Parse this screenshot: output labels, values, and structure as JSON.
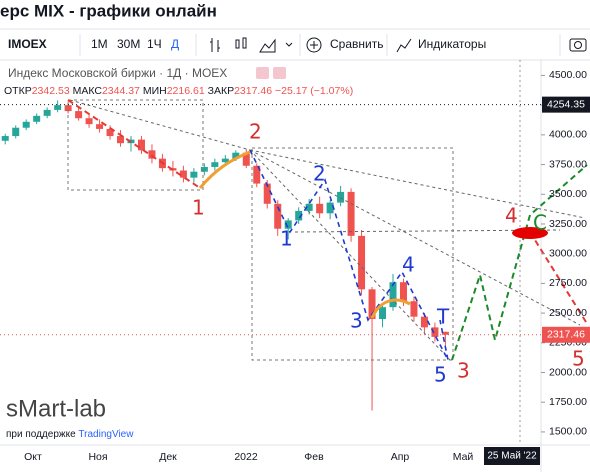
{
  "page": {
    "title": "ерс MIX - графики онлайн",
    "toolbar": {
      "symbol": "IMOEX",
      "intervals": [
        "1М",
        "30М",
        "1Ч",
        "Д"
      ],
      "compare": "Сравнить",
      "indicators": "Индикаторы"
    },
    "watermark": "sMart-lab",
    "powered_by": "при поддержке",
    "powered_by_brand": "TradingView"
  },
  "chart_data": {
    "type": "candlestick",
    "legend_title": "Индекс Московской биржи · 1Д · MOEX",
    "legend_labels": [
      "ОТКР",
      "МАКС",
      "МИН",
      "ЗАКР"
    ],
    "change": "−25.17 (−1.07%)",
    "up_color": "#26a69a",
    "down_color": "#ef5350",
    "candles": [
      [
        3950,
        4010,
        3920,
        3990
      ],
      [
        3990,
        4080,
        3970,
        4060
      ],
      [
        4060,
        4130,
        4040,
        4110
      ],
      [
        4110,
        4180,
        4090,
        4160
      ],
      [
        4160,
        4230,
        4140,
        4210
      ],
      [
        4210,
        4290,
        4190,
        4250
      ],
      [
        4250,
        4280,
        4180,
        4200
      ],
      [
        4200,
        4230,
        4120,
        4140
      ],
      [
        4140,
        4170,
        4060,
        4090
      ],
      [
        4090,
        4130,
        4020,
        4050
      ],
      [
        4050,
        4080,
        3960,
        3990
      ],
      [
        3990,
        4040,
        3900,
        3930
      ],
      [
        3930,
        3990,
        3860,
        3960
      ],
      [
        3960,
        3990,
        3840,
        3870
      ],
      [
        3870,
        3920,
        3760,
        3800
      ],
      [
        3800,
        3840,
        3690,
        3720
      ],
      [
        3720,
        3780,
        3650,
        3700
      ],
      [
        3700,
        3740,
        3600,
        3640
      ],
      [
        3640,
        3720,
        3600,
        3690
      ],
      [
        3690,
        3760,
        3660,
        3730
      ],
      [
        3730,
        3800,
        3700,
        3770
      ],
      [
        3770,
        3830,
        3740,
        3800
      ],
      [
        3800,
        3870,
        3780,
        3850
      ],
      [
        3850,
        3880,
        3720,
        3740
      ],
      [
        3740,
        3760,
        3560,
        3590
      ],
      [
        3590,
        3620,
        3380,
        3420
      ],
      [
        3420,
        3450,
        3150,
        3210
      ],
      [
        3210,
        3300,
        3120,
        3280
      ],
      [
        3280,
        3390,
        3250,
        3360
      ],
      [
        3360,
        3460,
        3330,
        3420
      ],
      [
        3420,
        3480,
        3300,
        3340
      ],
      [
        3340,
        3450,
        3290,
        3430
      ],
      [
        3430,
        3570,
        3400,
        3520
      ],
      [
        3520,
        3550,
        3100,
        3150
      ],
      [
        3150,
        3200,
        2650,
        2700
      ],
      [
        2700,
        2720,
        1680,
        2450
      ],
      [
        2450,
        2580,
        2380,
        2550
      ],
      [
        2550,
        2830,
        2520,
        2760
      ],
      [
        2760,
        2790,
        2560,
        2600
      ],
      [
        2600,
        2640,
        2430,
        2470
      ],
      [
        2470,
        2500,
        2330,
        2380
      ],
      [
        2380,
        2420,
        2260,
        2300
      ],
      [
        2342.53,
        2344.37,
        2216.61,
        2317.46
      ]
    ],
    "x_labels": [
      "Окт",
      "Ноя",
      "Дек",
      "2022",
      "Фев",
      "Апр",
      "Май"
    ],
    "cursor_date": "25 Май '22",
    "ylim": [
      1390,
      4630
    ],
    "yticks": [
      {
        "value": 4500,
        "label": "4500.00"
      },
      {
        "value": 4250,
        "label": "4250.00"
      },
      {
        "value": 4000,
        "label": "4000.00"
      },
      {
        "value": 3750,
        "label": "3750.00"
      },
      {
        "value": 3500,
        "label": "3500.00"
      },
      {
        "value": 3250,
        "label": "3250.00"
      },
      {
        "value": 3000,
        "label": "3000.00"
      },
      {
        "value": 2750,
        "label": "2750.00"
      },
      {
        "value": 2500,
        "label": "2500.00"
      },
      {
        "value": 2250,
        "label": "2250.00"
      },
      {
        "value": 2000,
        "label": "2000.00"
      },
      {
        "value": 1750,
        "label": "1750.00"
      },
      {
        "value": 1500,
        "label": "1500.00"
      }
    ],
    "price_lines": [
      {
        "value": 4254.35,
        "color": "#131722"
      },
      {
        "value": 2317.46,
        "color": "#ef5350"
      }
    ],
    "annotations": [
      "1",
      "2",
      "1",
      "2",
      "3",
      "4",
      "T",
      "5",
      "3",
      "4",
      "C",
      "5"
    ]
  }
}
